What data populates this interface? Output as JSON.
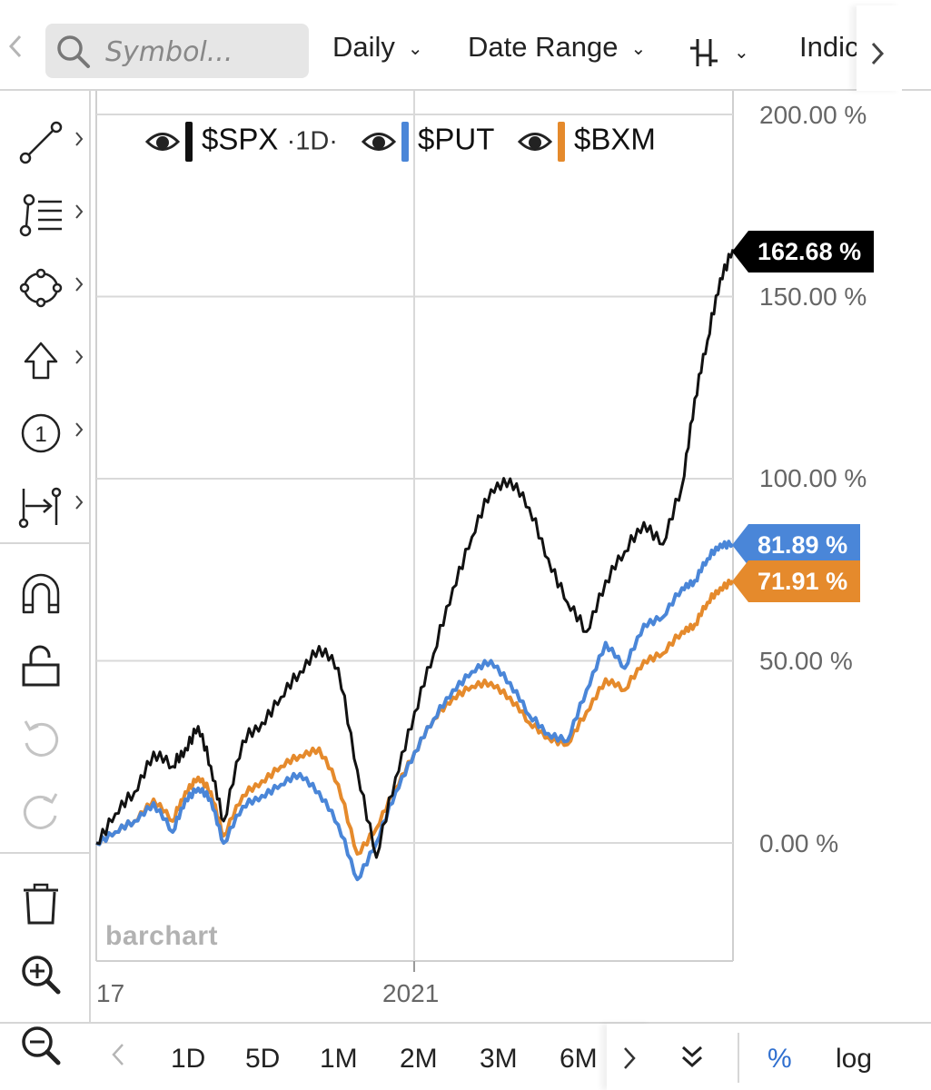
{
  "toolbar": {
    "search_placeholder": "Symbol...",
    "frequency": "Daily",
    "date_range": "Date Range",
    "indicators": "Indic"
  },
  "legend": [
    {
      "symbol": "$SPX",
      "interval": "·1D·",
      "color": "#111111"
    },
    {
      "symbol": "$PUT",
      "color": "#4a86d8"
    },
    {
      "symbol": "$BXM",
      "color": "#e58a2c"
    }
  ],
  "badges": {
    "spx": "162.68 %",
    "put": "81.89 %",
    "bxm": "71.91 %"
  },
  "watermark": "barchart",
  "range_buttons": [
    "1D",
    "5D",
    "1M",
    "2M",
    "3M",
    "6M"
  ],
  "scale": {
    "percent": "%",
    "log": "log"
  },
  "colors": {
    "spx": "#111111",
    "put": "#4a86d8",
    "bxm": "#e58a2c",
    "badge_spx": "#000000"
  },
  "icons": [
    "search-icon",
    "chevron-left-icon",
    "chevron-right-icon",
    "chevron-down-icon",
    "bar-style-icon",
    "trend-line-icon",
    "fib-icon",
    "shape-icon",
    "arrow-up-icon",
    "number-marker-icon",
    "measure-icon",
    "magnet-icon",
    "unlock-icon",
    "undo-icon",
    "redo-icon",
    "trash-icon",
    "zoom-in-icon",
    "zoom-out-icon",
    "eye-icon",
    "double-chevron-down-icon"
  ],
  "chart_data": {
    "type": "line",
    "title": "",
    "xlabel": "",
    "ylabel": "",
    "y_unit": "%",
    "ylim": [
      -20,
      200
    ],
    "y_ticks": [
      "200.00 %",
      "150.00 %",
      "100.00 %",
      "50.00 %",
      "0.00 %"
    ],
    "x_tick_labels": [
      "17",
      "2021"
    ],
    "grid": true,
    "legend_position": "top",
    "x_index": [
      0,
      3,
      6,
      9,
      12,
      14,
      16,
      18,
      20,
      23,
      26,
      29,
      32,
      35,
      38,
      41,
      44,
      47,
      50,
      53,
      56,
      59,
      62,
      65,
      68,
      71,
      74,
      77,
      80,
      83,
      86,
      89,
      92,
      94,
      96,
      98,
      100
    ],
    "series": [
      {
        "name": "$SPX",
        "values": [
          0,
          8,
          14,
          25,
          21,
          26,
          32,
          21,
          6,
          28,
          33,
          40,
          47,
          54,
          48,
          20,
          -4,
          18,
          36,
          52,
          70,
          84,
          97,
          100,
          92,
          78,
          66,
          58,
          72,
          80,
          88,
          82,
          98,
          122,
          138,
          155,
          163
        ]
      },
      {
        "name": "$PUT",
        "values": [
          0,
          3,
          6,
          11,
          3,
          12,
          15,
          12,
          0,
          10,
          13,
          16,
          19,
          14,
          5,
          -10,
          0,
          14,
          25,
          34,
          42,
          47,
          50,
          44,
          35,
          30,
          28,
          42,
          55,
          48,
          60,
          62,
          70,
          72,
          78,
          82,
          82
        ]
      },
      {
        "name": "$BXM",
        "values": [
          0,
          3,
          6,
          12,
          6,
          14,
          18,
          14,
          2,
          13,
          17,
          21,
          24,
          26,
          16,
          -3,
          4,
          15,
          25,
          34,
          40,
          43,
          44,
          40,
          33,
          29,
          27,
          36,
          45,
          42,
          50,
          52,
          58,
          60,
          66,
          70,
          72
        ]
      }
    ]
  }
}
